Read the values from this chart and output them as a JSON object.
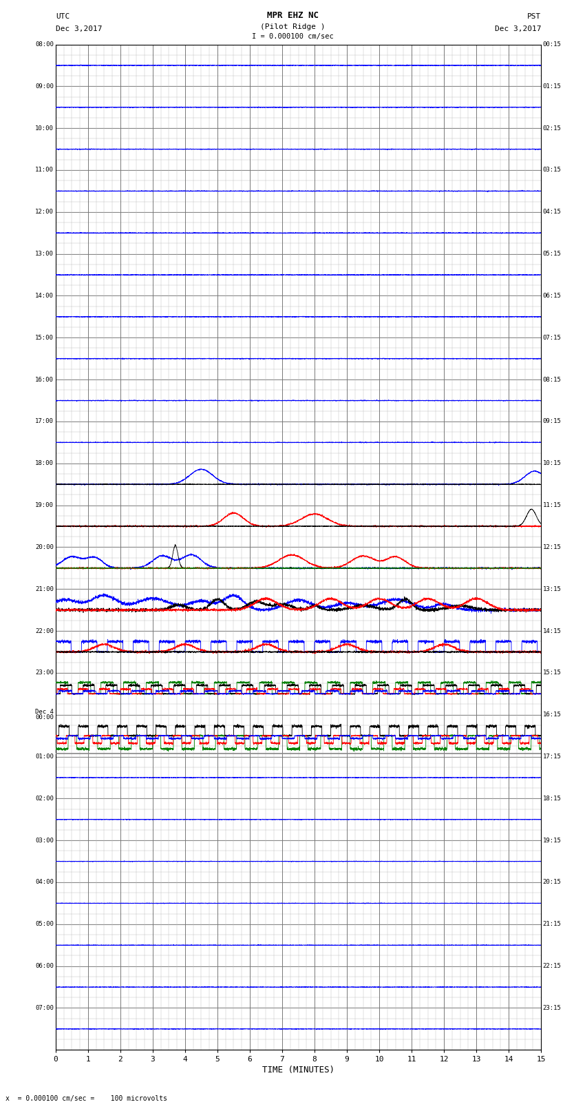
{
  "title_line1": "MPR EHZ NC",
  "title_line2": "(Pilot Ridge )",
  "title_line3": "I = 0.000100 cm/sec",
  "left_header_line1": "UTC",
  "left_header_line2": "Dec 3,2017",
  "right_header_line1": "PST",
  "right_header_line2": "Dec 3,2017",
  "xlabel": "TIME (MINUTES)",
  "footer": "x  = 0.000100 cm/sec =    100 microvolts",
  "utc_times": [
    "08:00",
    "09:00",
    "10:00",
    "11:00",
    "12:00",
    "13:00",
    "14:00",
    "15:00",
    "16:00",
    "17:00",
    "18:00",
    "19:00",
    "20:00",
    "21:00",
    "22:00",
    "23:00",
    "Dec 4\n00:00",
    "01:00",
    "02:00",
    "03:00",
    "04:00",
    "05:00",
    "06:00",
    "07:00"
  ],
  "pst_times": [
    "00:15",
    "01:15",
    "02:15",
    "03:15",
    "04:15",
    "05:15",
    "06:15",
    "07:15",
    "08:15",
    "09:15",
    "10:15",
    "11:15",
    "12:15",
    "13:15",
    "14:15",
    "15:15",
    "16:15",
    "17:15",
    "18:15",
    "19:15",
    "20:15",
    "21:15",
    "22:15",
    "23:15"
  ],
  "n_rows": 24,
  "sub_rows": 4,
  "x_min": 0,
  "x_max": 15,
  "x_ticks": [
    0,
    1,
    2,
    3,
    4,
    5,
    6,
    7,
    8,
    9,
    10,
    11,
    12,
    13,
    14,
    15
  ],
  "bg_color": "#ffffff",
  "major_grid_color": "#777777",
  "minor_grid_color": "#bbbbbb",
  "signal_colors": [
    "blue",
    "red",
    "black",
    "green"
  ],
  "seed": 42,
  "fig_width": 8.5,
  "fig_height": 16.13,
  "dpi": 100
}
